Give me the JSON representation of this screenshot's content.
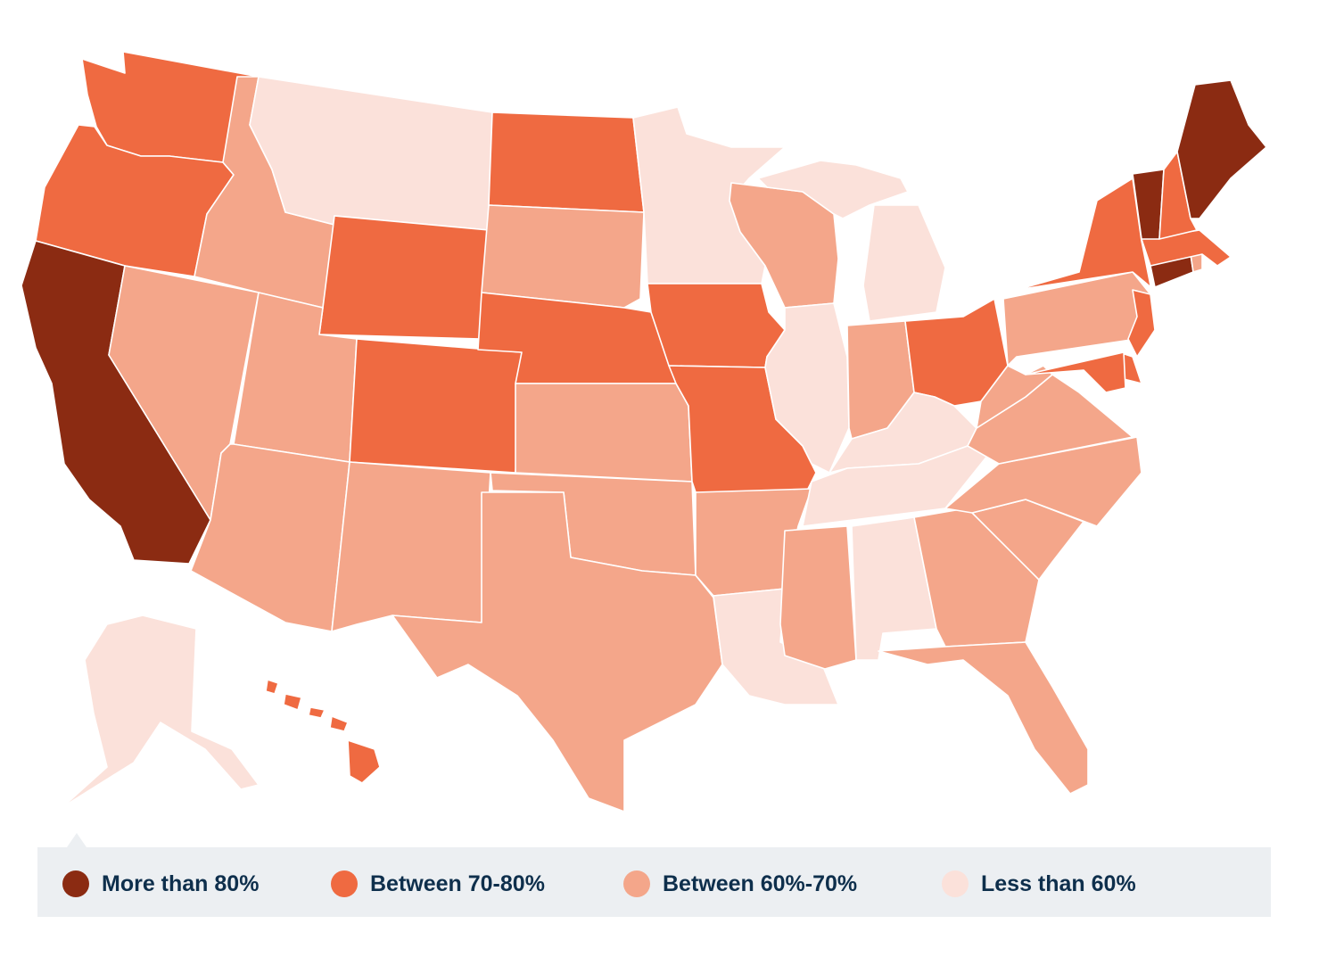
{
  "colors": {
    "more_than_80": "#8b2b12",
    "between_70_80": "#ef6a41",
    "between_60_70": "#f4a68a",
    "less_than_60": "#fbe1da"
  },
  "legend": [
    {
      "label": "More than 80%",
      "color": "#8b2b12"
    },
    {
      "label": "Between 70-80%",
      "color": "#ef6a41"
    },
    {
      "label": "Between 60%-70%",
      "color": "#f4a68a"
    },
    {
      "label": "Less than 60%",
      "color": "#fbe1da"
    }
  ],
  "states": [
    {
      "state": "WA",
      "category": "Between 70-80%"
    },
    {
      "state": "OR",
      "category": "Between 70-80%"
    },
    {
      "state": "CA",
      "category": "More than 80%"
    },
    {
      "state": "ID",
      "category": "Between 60%-70%"
    },
    {
      "state": "NV",
      "category": "Between 60%-70%"
    },
    {
      "state": "MT",
      "category": "Less than 60%"
    },
    {
      "state": "WY",
      "category": "Between 70-80%"
    },
    {
      "state": "UT",
      "category": "Between 60%-70%"
    },
    {
      "state": "AZ",
      "category": "Between 60%-70%"
    },
    {
      "state": "CO",
      "category": "Between 70-80%"
    },
    {
      "state": "NM",
      "category": "Between 60%-70%"
    },
    {
      "state": "ND",
      "category": "Between 70-80%"
    },
    {
      "state": "SD",
      "category": "Between 60%-70%"
    },
    {
      "state": "NE",
      "category": "Between 70-80%"
    },
    {
      "state": "KS",
      "category": "Between 60%-70%"
    },
    {
      "state": "OK",
      "category": "Between 60%-70%"
    },
    {
      "state": "TX",
      "category": "Between 60%-70%"
    },
    {
      "state": "MN",
      "category": "Less than 60%"
    },
    {
      "state": "IA",
      "category": "Between 70-80%"
    },
    {
      "state": "MO",
      "category": "Between 70-80%"
    },
    {
      "state": "AR",
      "category": "Between 60%-70%"
    },
    {
      "state": "LA",
      "category": "Less than 60%"
    },
    {
      "state": "WI",
      "category": "Between 60%-70%"
    },
    {
      "state": "IL",
      "category": "Less than 60%"
    },
    {
      "state": "MI",
      "category": "Less than 60%"
    },
    {
      "state": "IN",
      "category": "Between 60%-70%"
    },
    {
      "state": "OH",
      "category": "Between 70-80%"
    },
    {
      "state": "KY",
      "category": "Less than 60%"
    },
    {
      "state": "TN",
      "category": "Less than 60%"
    },
    {
      "state": "MS",
      "category": "Between 60%-70%"
    },
    {
      "state": "AL",
      "category": "Less than 60%"
    },
    {
      "state": "GA",
      "category": "Between 60%-70%"
    },
    {
      "state": "FL",
      "category": "Between 60%-70%"
    },
    {
      "state": "SC",
      "category": "Between 60%-70%"
    },
    {
      "state": "NC",
      "category": "Between 60%-70%"
    },
    {
      "state": "VA",
      "category": "Between 60%-70%"
    },
    {
      "state": "WV",
      "category": "Between 60%-70%"
    },
    {
      "state": "PA",
      "category": "Between 60%-70%"
    },
    {
      "state": "NY",
      "category": "Between 70-80%"
    },
    {
      "state": "NJ",
      "category": "Between 70-80%"
    },
    {
      "state": "DE",
      "category": "Between 70-80%"
    },
    {
      "state": "MD",
      "category": "Between 70-80%"
    },
    {
      "state": "CT",
      "category": "More than 80%"
    },
    {
      "state": "RI",
      "category": "Between 60%-70%"
    },
    {
      "state": "MA",
      "category": "Between 70-80%"
    },
    {
      "state": "VT",
      "category": "More than 80%"
    },
    {
      "state": "NH",
      "category": "Between 70-80%"
    },
    {
      "state": "ME",
      "category": "More than 80%"
    },
    {
      "state": "AK",
      "category": "Less than 60%"
    },
    {
      "state": "HI",
      "category": "Between 70-80%"
    }
  ]
}
